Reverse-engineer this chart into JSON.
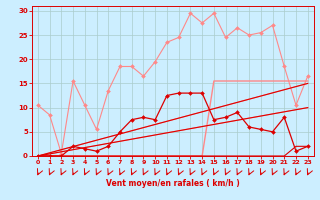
{
  "x": [
    0,
    1,
    2,
    3,
    4,
    5,
    6,
    7,
    8,
    9,
    10,
    11,
    12,
    13,
    14,
    15,
    16,
    17,
    18,
    19,
    20,
    21,
    22,
    23
  ],
  "background_color": "#cceeff",
  "grid_color": "#aacccc",
  "xlabel": "Vent moyen/en rafales ( km/h )",
  "ylim": [
    0,
    31
  ],
  "xlim": [
    -0.5,
    23.5
  ],
  "yticks": [
    0,
    5,
    10,
    15,
    20,
    25,
    30
  ],
  "xticks": [
    0,
    1,
    2,
    3,
    4,
    5,
    6,
    7,
    8,
    9,
    10,
    11,
    12,
    13,
    14,
    15,
    16,
    17,
    18,
    19,
    20,
    21,
    22,
    23
  ],
  "series": [
    {
      "name": "rafales_pink",
      "color": "#ff8888",
      "linewidth": 0.8,
      "marker": "D",
      "markersize": 2.0,
      "y": [
        10.5,
        8.5,
        0.5,
        15.5,
        10.5,
        5.5,
        13.5,
        18.5,
        18.5,
        16.5,
        19.5,
        23.5,
        24.5,
        29.5,
        27.5,
        29.5,
        24.5,
        26.5,
        25.0,
        25.5,
        27.0,
        18.5,
        10.5,
        16.5
      ]
    },
    {
      "name": "moyen_pink_flat",
      "color": "#ff8888",
      "linewidth": 1.0,
      "marker": null,
      "y": [
        0,
        0,
        0,
        0,
        0,
        0,
        0,
        0,
        0,
        0,
        0,
        0,
        0,
        0,
        0,
        15.5,
        15.5,
        15.5,
        15.5,
        15.5,
        15.5,
        15.5,
        15.5,
        15.5
      ]
    },
    {
      "name": "diagonal_upper_pink",
      "color": "#ff8888",
      "linewidth": 0.8,
      "marker": null,
      "y": [
        0,
        0.652,
        1.304,
        1.957,
        2.609,
        3.261,
        3.913,
        4.565,
        5.217,
        5.87,
        6.522,
        7.174,
        7.826,
        8.478,
        9.13,
        9.783,
        10.435,
        11.087,
        11.739,
        12.391,
        13.043,
        13.696,
        14.348,
        15.0
      ]
    },
    {
      "name": "diagonal_lower_pink",
      "color": "#ff8888",
      "linewidth": 0.8,
      "marker": null,
      "y": [
        0,
        0.435,
        0.87,
        1.304,
        1.739,
        2.174,
        2.609,
        3.043,
        3.478,
        3.913,
        4.348,
        4.783,
        5.217,
        5.652,
        6.087,
        6.522,
        6.957,
        7.391,
        7.826,
        8.261,
        8.696,
        9.13,
        9.565,
        10.0
      ]
    },
    {
      "name": "vent_moyen_red_main",
      "color": "#dd0000",
      "linewidth": 0.9,
      "marker": "D",
      "markersize": 2.0,
      "y": [
        0,
        0,
        0,
        2,
        1.5,
        1,
        2,
        5,
        7.5,
        8,
        7.5,
        12.5,
        13,
        13,
        13,
        7.5,
        8,
        9,
        6,
        5.5,
        5,
        8,
        1,
        2
      ]
    },
    {
      "name": "red_diagonal1",
      "color": "#dd0000",
      "linewidth": 0.8,
      "marker": null,
      "y": [
        0,
        0.652,
        1.304,
        1.957,
        2.609,
        3.261,
        3.913,
        4.565,
        5.217,
        5.87,
        6.522,
        7.174,
        7.826,
        8.478,
        9.13,
        9.783,
        10.435,
        11.087,
        11.739,
        12.391,
        13.043,
        13.696,
        14.348,
        15.0
      ]
    },
    {
      "name": "red_diagonal2",
      "color": "#dd0000",
      "linewidth": 0.8,
      "marker": null,
      "y": [
        0,
        0.435,
        0.87,
        1.304,
        1.739,
        2.174,
        2.609,
        3.043,
        3.478,
        3.913,
        4.348,
        4.783,
        5.217,
        5.652,
        6.087,
        6.522,
        6.957,
        7.391,
        7.826,
        8.261,
        8.696,
        9.13,
        9.565,
        10.0
      ]
    },
    {
      "name": "red_flat_zero",
      "color": "#dd0000",
      "linewidth": 0.8,
      "marker": null,
      "y": [
        0,
        0,
        0,
        0,
        0,
        0,
        0,
        0,
        0,
        0,
        0,
        0,
        0,
        0,
        0,
        0,
        0,
        0,
        0,
        0,
        0,
        0,
        0,
        0
      ]
    },
    {
      "name": "red_flat_low_end",
      "color": "#dd0000",
      "linewidth": 0.8,
      "marker": null,
      "y": [
        0,
        0,
        0,
        0,
        0,
        0,
        0,
        0,
        0,
        0,
        0,
        0,
        0,
        0,
        0,
        0,
        0,
        0,
        0,
        0,
        0,
        0,
        2,
        2
      ]
    }
  ],
  "arrow_color": "#dd0000",
  "tick_color": "#dd0000",
  "label_color": "#dd0000",
  "spine_color": "#dd0000"
}
